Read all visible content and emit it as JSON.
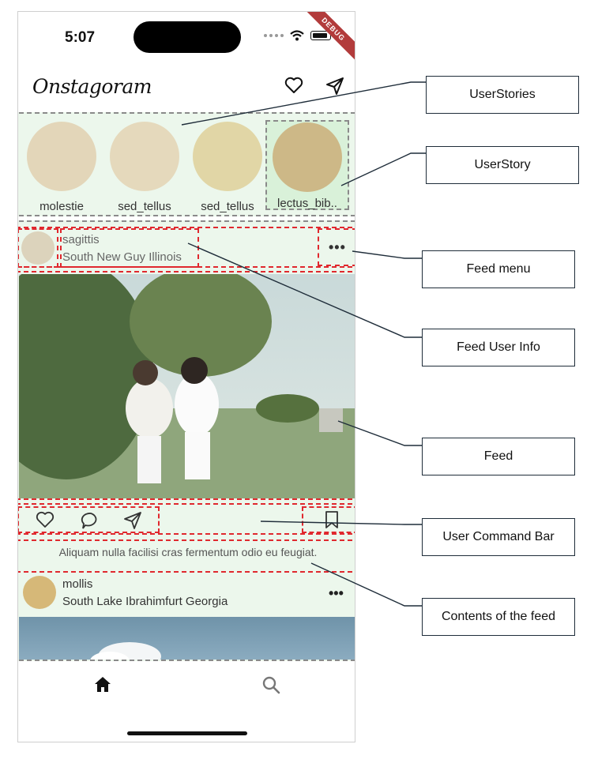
{
  "status_bar": {
    "time": "5:07",
    "debug_label": "DEBUG"
  },
  "app": {
    "title": "Onstagoram"
  },
  "stories": [
    {
      "name": "molestie",
      "color": "#e3d6b9"
    },
    {
      "name": "sed_tellus",
      "color": "#e5d9bc"
    },
    {
      "name": "sed_tellus",
      "color": "#e1d6a6"
    },
    {
      "name": "lectus_bib..",
      "color": "#cdb887"
    }
  ],
  "feed_post": {
    "username": "sagittis",
    "location": "South New Guy Illinois",
    "menu_glyph": "•••",
    "caption": "Aliquam nulla facilisi cras fermentum odio eu feugiat."
  },
  "next_post": {
    "username": "mollis",
    "location": "South Lake Ibrahimfurt Georgia",
    "menu_glyph": "•••"
  },
  "annotations": {
    "user_stories": "UserStories",
    "user_story": "UserStory",
    "feed_menu": "Feed menu",
    "feed_user_info": "Feed User Info",
    "feed": "Feed",
    "user_command_bar": "User Command Bar",
    "contents_of_feed": "Contents of the feed"
  },
  "colors": {
    "outline_gray": "#8a8a8a",
    "outline_red": "#e0282e",
    "region_fill": "#ecf7ec",
    "callout_border": "#1f2d3a"
  }
}
